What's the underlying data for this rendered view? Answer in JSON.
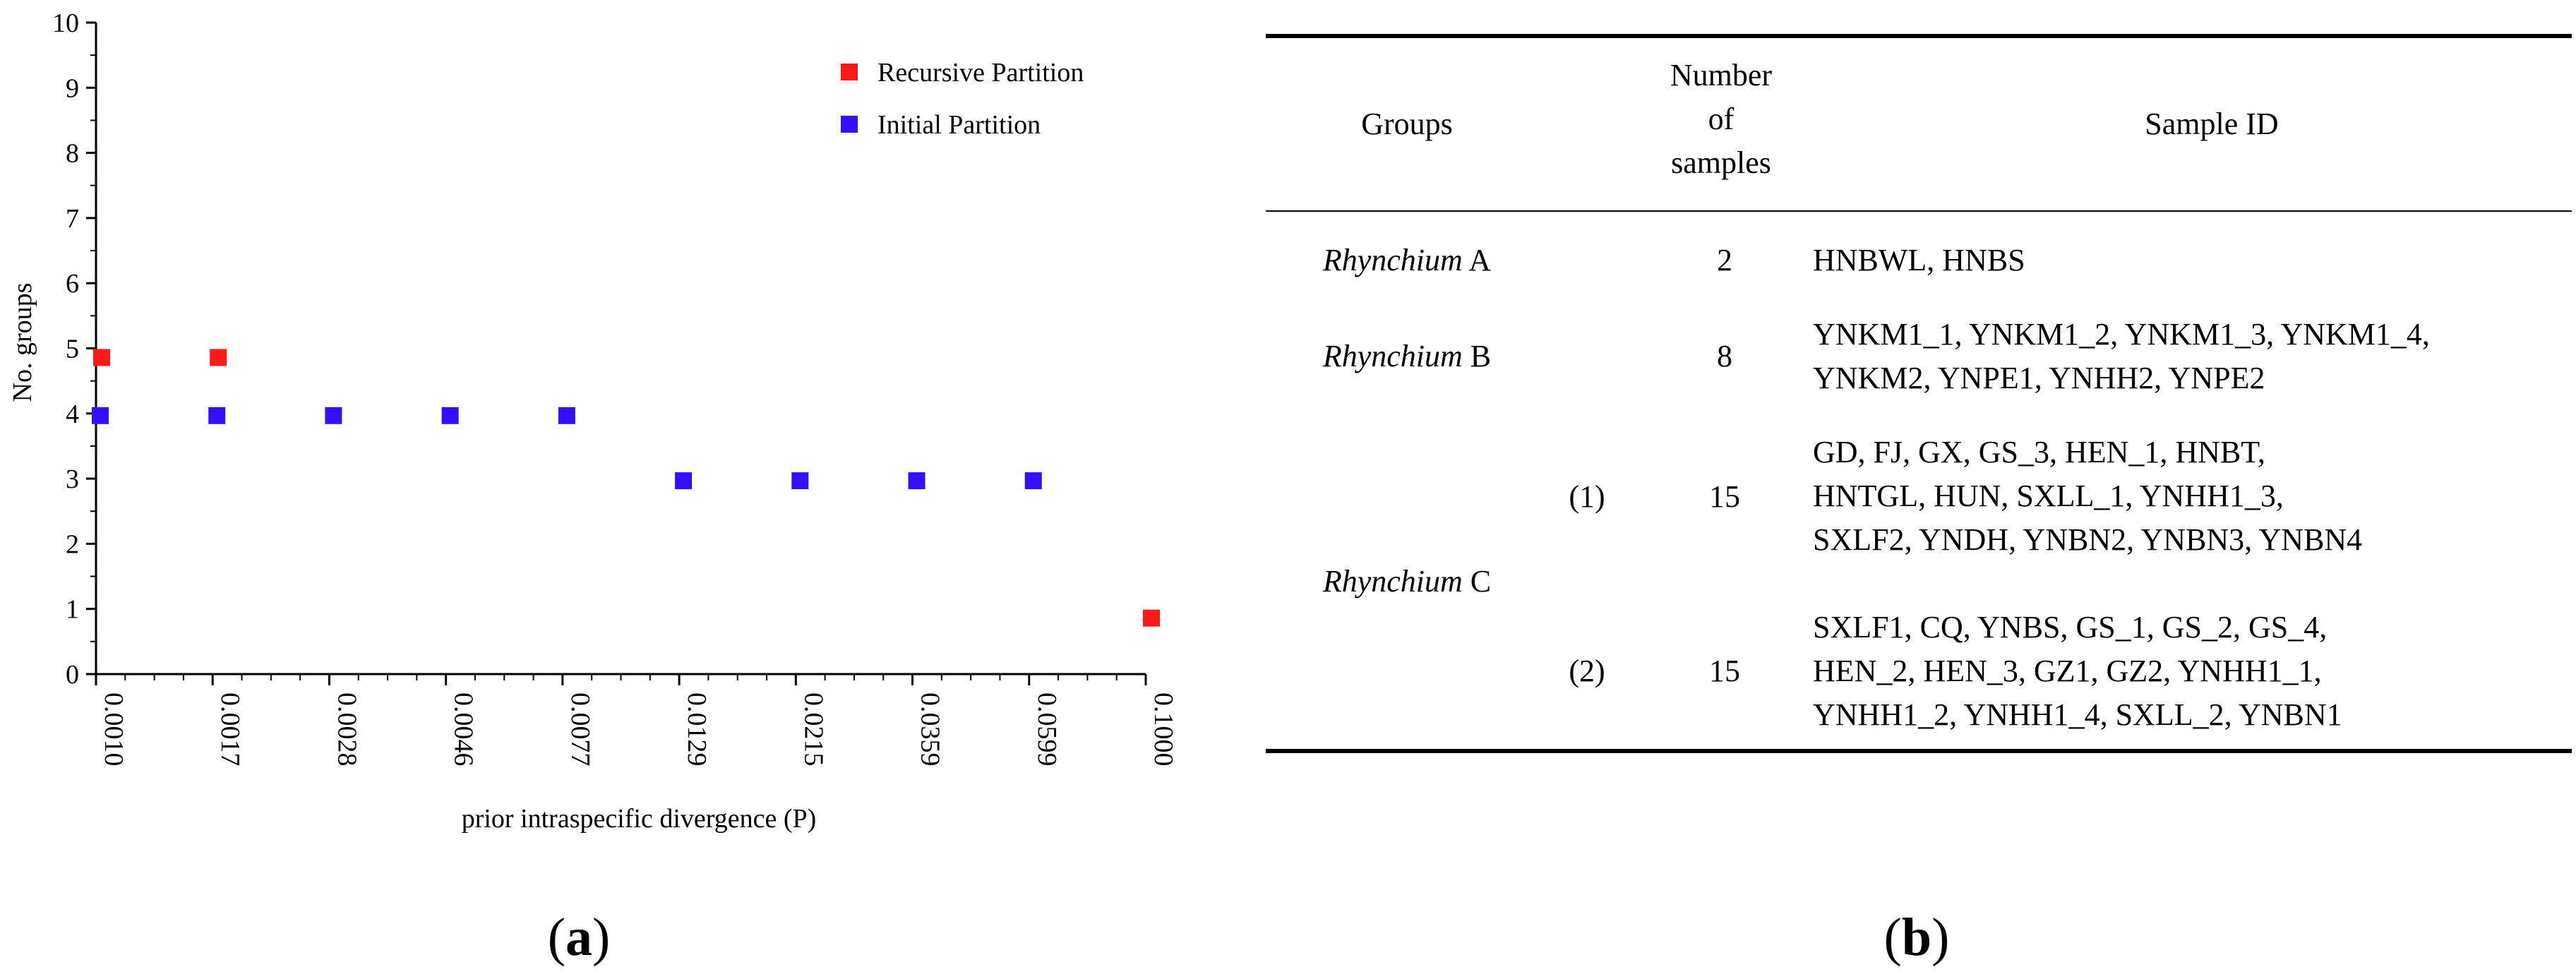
{
  "chart_data": {
    "type": "scatter",
    "title": "",
    "xlabel": "prior intraspecific divergence (P)",
    "ylabel": "No. groups",
    "ylim": [
      0,
      10
    ],
    "y_ticks": [
      "0",
      "1",
      "2",
      "3",
      "4",
      "5",
      "6",
      "7",
      "8",
      "9",
      "10"
    ],
    "categories": [
      "0.0010",
      "0.0017",
      "0.0028",
      "0.0046",
      "0.0077",
      "0.0129",
      "0.0215",
      "0.0359",
      "0.0599",
      "0.1000"
    ],
    "legend_position": "top-right",
    "series": [
      {
        "name": "Recursive Partition",
        "color": "#ff1a1a",
        "values": [
          5,
          5,
          null,
          null,
          null,
          null,
          null,
          null,
          null,
          1
        ]
      },
      {
        "name": "Initial Partition",
        "color": "#3311ff",
        "values": [
          4,
          4,
          4,
          4,
          4,
          3,
          3,
          3,
          3,
          null
        ]
      }
    ]
  },
  "panel_a_caption": {
    "open": "(",
    "letter": "a",
    "close": ")"
  },
  "panel_b_caption": {
    "open": "(",
    "letter": "b",
    "close": ")"
  },
  "table": {
    "headers": {
      "groups": "Groups",
      "number_line1": "Number",
      "number_line2": "of",
      "number_line3": "samples",
      "sample_id": "Sample ID"
    },
    "rows": [
      {
        "genus": "Rhynchium",
        "suffix": " A",
        "number": "2",
        "samples": [
          "HNBWL, HNBS"
        ]
      },
      {
        "genus": "Rhynchium",
        "suffix": " B",
        "number": "8",
        "samples": [
          "YNKM1_1, YNKM1_2, YNKM1_3, YNKM1_4,",
          "YNKM2, YNPE1, YNHH2, YNPE2"
        ]
      },
      {
        "genus": "Rhynchium",
        "suffix": " C",
        "subgroups": [
          {
            "label": "(1)",
            "number": "15",
            "samples": [
              "GD, FJ, GX, GS_3, HEN_1, HNBT,",
              "HNTGL, HUN, SXLL_1, YNHH1_3,",
              "SXLF2, YNDH, YNBN2, YNBN3, YNBN4"
            ]
          },
          {
            "label": "(2)",
            "number": "15",
            "samples": [
              "SXLF1, CQ, YNBS, GS_1, GS_2, GS_4,",
              "HEN_2, HEN_3, GZ1, GZ2, YNHH1_1,",
              "YNHH1_2, YNHH1_4, SXLL_2, YNBN1"
            ]
          }
        ]
      }
    ]
  }
}
